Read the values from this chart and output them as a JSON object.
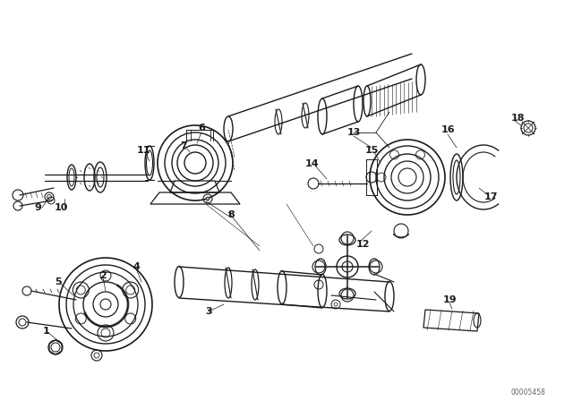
{
  "bg_color": "#ffffff",
  "line_color": "#1a1a1a",
  "watermark": "00005458",
  "fig_width": 6.4,
  "fig_height": 4.48,
  "dpi": 100
}
